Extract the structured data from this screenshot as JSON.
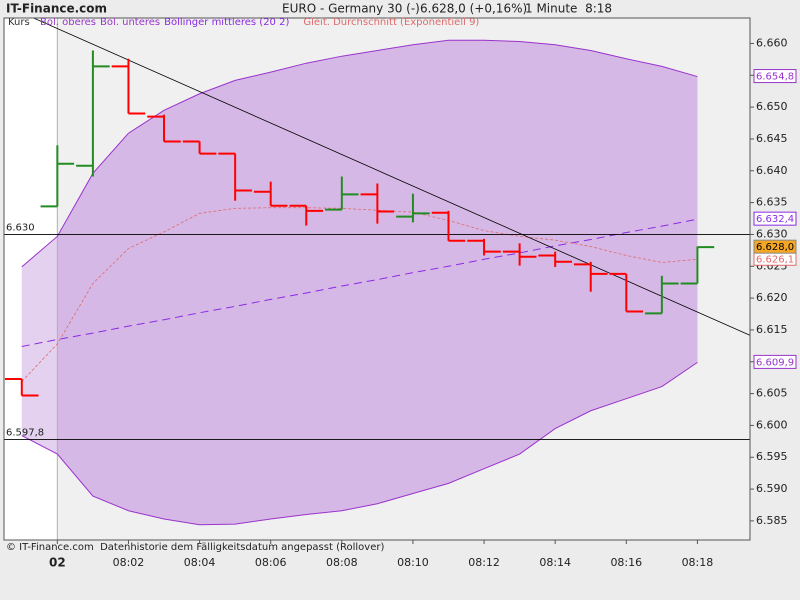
{
  "chart_data": {
    "type": "ohlc",
    "brand": "IT-Finance.com",
    "title": "EURO - Germany 30 (-)",
    "quote": "6.628,0 (+0,16%)",
    "interval": "1 Minute  8:18",
    "footer": "© IT-Finance.com  Datenhistorie dem Fälligkeitsdatum angepasst (Rollover)",
    "categories": [
      null,
      "02",
      null,
      "08:02",
      null,
      "08:04",
      null,
      "08:06",
      null,
      "08:08",
      null,
      "08:10",
      null,
      "08:12",
      null,
      "08:14",
      null,
      "08:16",
      null,
      "08:18"
    ],
    "ohlc": {
      "name": "Kurs",
      "up_color": "#228b22",
      "down_color": "#ff0000",
      "open": [
        6.6073,
        6.6344,
        6.6408,
        6.6564,
        6.6485,
        6.6446,
        6.6427,
        6.6367,
        6.6345,
        6.6339,
        6.6363,
        6.6328,
        6.6334,
        6.629,
        6.6273,
        6.6267,
        6.6253,
        6.6238,
        6.6176,
        6.6223
      ],
      "high": [
        6.6073,
        6.644,
        6.6589,
        6.6576,
        6.6488,
        6.6446,
        6.6427,
        6.6383,
        6.6345,
        6.6391,
        6.638,
        6.6364,
        6.6337,
        6.6293,
        6.6286,
        6.6273,
        6.6257,
        6.6238,
        6.6235,
        6.6281
      ],
      "low": [
        6.6047,
        6.6344,
        6.6391,
        6.649,
        6.6446,
        6.6427,
        6.6353,
        6.6345,
        6.6314,
        6.6339,
        6.6317,
        6.6319,
        6.629,
        6.6267,
        6.6251,
        6.6249,
        6.621,
        6.6179,
        6.6176,
        6.6223
      ],
      "close": [
        6.6047,
        6.6411,
        6.6564,
        6.649,
        6.6446,
        6.6427,
        6.6369,
        6.6345,
        6.6337,
        6.6363,
        6.6336,
        6.6333,
        6.629,
        6.6273,
        6.6265,
        6.6257,
        6.6238,
        6.6179,
        6.6223,
        6.628
      ],
      "last_label": "6.628,0",
      "label_fill": "#f5a623"
    },
    "band_fill": "#d6b8e6",
    "series": [
      {
        "name": "Bol. oberes",
        "role": "upper",
        "color": "#9933cc",
        "dash": false,
        "values": [
          6.6249,
          6.6297,
          6.6396,
          6.6459,
          6.6495,
          6.6521,
          6.6542,
          6.6555,
          6.6569,
          6.658,
          6.6589,
          6.6598,
          6.6605,
          6.6605,
          6.6603,
          6.6598,
          6.6589,
          6.6576,
          6.6564,
          6.6548
        ],
        "last_label": "6.654,8"
      },
      {
        "name": "Bol. unteres",
        "role": "lower",
        "color": "#9933cc",
        "dash": false,
        "values": [
          6.5984,
          6.5955,
          6.5889,
          6.5866,
          6.5853,
          6.5844,
          6.5845,
          6.5853,
          6.586,
          6.5866,
          6.5877,
          6.5893,
          6.5909,
          6.5932,
          6.5955,
          6.5995,
          6.6023,
          6.6042,
          6.6061,
          6.6099
        ],
        "last_label": "6.609,9"
      },
      {
        "name": "Bollinger mittleres (20 2)",
        "role": "middle",
        "color": "#8a2be2",
        "dash": true,
        "values": [
          6.6124,
          6.6135,
          6.6145,
          6.6156,
          6.6166,
          6.6177,
          6.6187,
          6.6198,
          6.6208,
          6.6219,
          6.6229,
          6.624,
          6.625,
          6.6261,
          6.6271,
          6.6282,
          6.6292,
          6.6303,
          6.6313,
          6.6324
        ],
        "last_label": "6.632,4"
      },
      {
        "name": "Gleit. Durchschnitt (Exponentiell 9)",
        "role": "ema",
        "color": "#e06a6a",
        "dash": true,
        "values": [
          6.6069,
          6.6128,
          6.6223,
          6.6278,
          6.6304,
          6.6333,
          6.6341,
          6.6342,
          6.6342,
          6.6341,
          6.6338,
          6.6335,
          6.6322,
          6.6306,
          6.6297,
          6.6291,
          6.6281,
          6.6267,
          6.6256,
          6.6261
        ],
        "last_label": "6.626,1"
      }
    ],
    "hlines": [
      {
        "value": 6.63,
        "label": "6.630"
      },
      {
        "value": 6.5978,
        "label": "6.597,8"
      }
    ],
    "trendline": {
      "x": [
        0.25,
        20.5
      ],
      "y": [
        6.6642,
        6.6141
      ]
    },
    "ylim": [
      6.582,
      6.664
    ],
    "yticks": [
      {
        "value": 6.585,
        "label": "6.585"
      },
      {
        "value": 6.59,
        "label": "6.590"
      },
      {
        "value": 6.595,
        "label": "6.595"
      },
      {
        "value": 6.6,
        "label": "6.600"
      },
      {
        "value": 6.605,
        "label": "6.605"
      },
      {
        "value": 6.61,
        "label": "6.610"
      },
      {
        "value": 6.615,
        "label": "6.615"
      },
      {
        "value": 6.62,
        "label": "6.620"
      },
      {
        "value": 6.625,
        "label": "6.625"
      },
      {
        "value": 6.63,
        "label": "6.630"
      },
      {
        "value": 6.635,
        "label": "6.635"
      },
      {
        "value": 6.64,
        "label": "6.640"
      },
      {
        "value": 6.645,
        "label": "6.645"
      },
      {
        "value": 6.65,
        "label": "6.650"
      },
      {
        "value": 6.655,
        "label": "6.655"
      },
      {
        "value": 6.66,
        "label": "6.660"
      }
    ],
    "grid": false
  }
}
